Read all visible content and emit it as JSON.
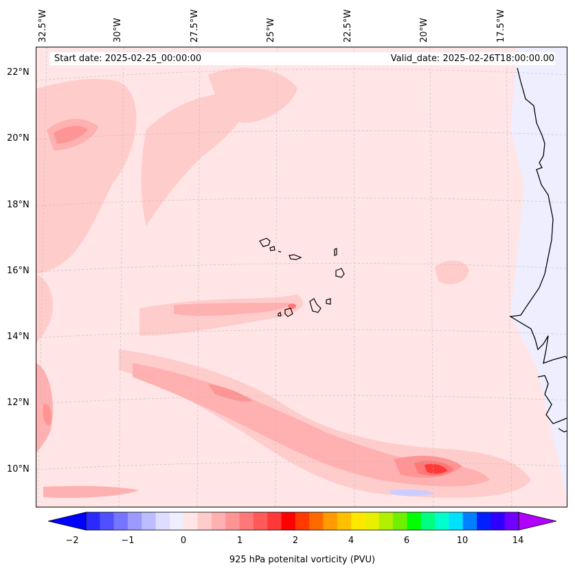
{
  "map": {
    "longitude_labels": [
      "32.5°W",
      "30°W",
      "27.5°W",
      "25°W",
      "22.5°W",
      "20°W",
      "17.5°W"
    ],
    "latitude_labels": [
      "22°N",
      "20°N",
      "18°N",
      "16°N",
      "14°N",
      "12°N",
      "10°N"
    ],
    "start_date": "Start date: 2025-02-25_00:00:00",
    "valid_date": "Valid_date: 2025-02-26T18:00:00.00",
    "extent": {
      "lon_min": -33.0,
      "lon_max": -15.8,
      "lat_min": 9.0,
      "lat_max": 22.8
    },
    "field": "925 hPa potential vorticity",
    "colors": {
      "background_level": "#ffe5e5",
      "land_level": "#eeeeff",
      "coastline": "#000000"
    }
  },
  "colorbar": {
    "title": "925 hPa potenital vorticity (PVU)",
    "tick_labels": [
      "−2",
      "−1",
      "0",
      "1",
      "2",
      "4",
      "6",
      "10",
      "14"
    ],
    "levels": [
      -2,
      -1.5,
      -1,
      -0.5,
      0,
      0.25,
      0.5,
      0.75,
      1,
      1.25,
      1.5,
      1.75,
      2,
      2.5,
      3,
      3.5,
      4,
      4.5,
      5,
      5.5,
      6,
      7,
      8,
      9,
      10,
      11,
      12,
      13,
      14,
      15
    ],
    "colors": [
      "#0000ff",
      "#2a2aff",
      "#5050ff",
      "#7575ff",
      "#9a9aff",
      "#bcbcff",
      "#ddddff",
      "#eeeeff",
      "#ffe5e5",
      "#ffcccc",
      "#ffb0b0",
      "#ff9494",
      "#ff7878",
      "#ff5a5a",
      "#ff3838",
      "#ff0000",
      "#ff3a00",
      "#ff6a00",
      "#ff9a00",
      "#ffc000",
      "#ffe800",
      "#e8f000",
      "#b0f000",
      "#70f000",
      "#00ff00",
      "#00ff80",
      "#00ffcc",
      "#00e0ff",
      "#0080ff",
      "#0020ff",
      "#3000ff",
      "#7000ff",
      "#b000ff"
    ],
    "extend": "both"
  }
}
